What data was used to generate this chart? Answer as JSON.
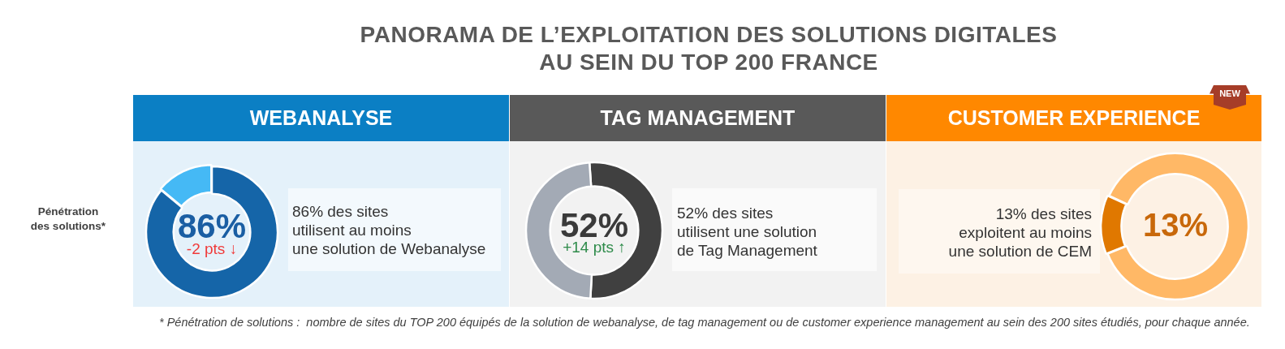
{
  "chart_data": [
    {
      "type": "other",
      "title": "PANORAMA DE L’EXPLOITATION DES SOLUTIONS DIGITALES\nAU SEIN DU TOP 200 FRANCE",
      "annotations": [
        "Pénétration des solutions*",
        "* Pénétration de solutions :  nombre de sites du TOP 200 équipés de la solution de webanalyse, de tag management ou de customer experience management au sein des 200 sites étudiés, pour chaque année."
      ]
    },
    {
      "type": "donut",
      "title": "WEBANALYSE",
      "categories": [
        null,
        null
      ],
      "values": [
        86,
        14
      ],
      "colors": [
        "#1565a8",
        "#45b9f5"
      ],
      "annotations": [
        "86%",
        "-2 pts ↓",
        "86% des sites\nutilisent au moins\nune solution de Webanalyse"
      ]
    },
    {
      "type": "donut",
      "title": "TAG MANAGEMENT",
      "categories": [
        null,
        null
      ],
      "values": [
        52,
        48
      ],
      "colors": [
        "#404040",
        "#a3aab5"
      ],
      "annotations": [
        "52%",
        "+14 pts ↑",
        "52% des sites\nutilisent une solution\nde Tag Management"
      ]
    },
    {
      "type": "donut",
      "title": "CUSTOMER EXPERIENCE",
      "subtitle": "NEW",
      "categories": [
        null,
        null
      ],
      "values": [
        13,
        87
      ],
      "colors": [
        "#e07800",
        "#ffb866"
      ],
      "annotations": [
        "13%",
        "13% des sites\nexploitent au moins\nune solution de CEM"
      ]
    }
  ]
}
